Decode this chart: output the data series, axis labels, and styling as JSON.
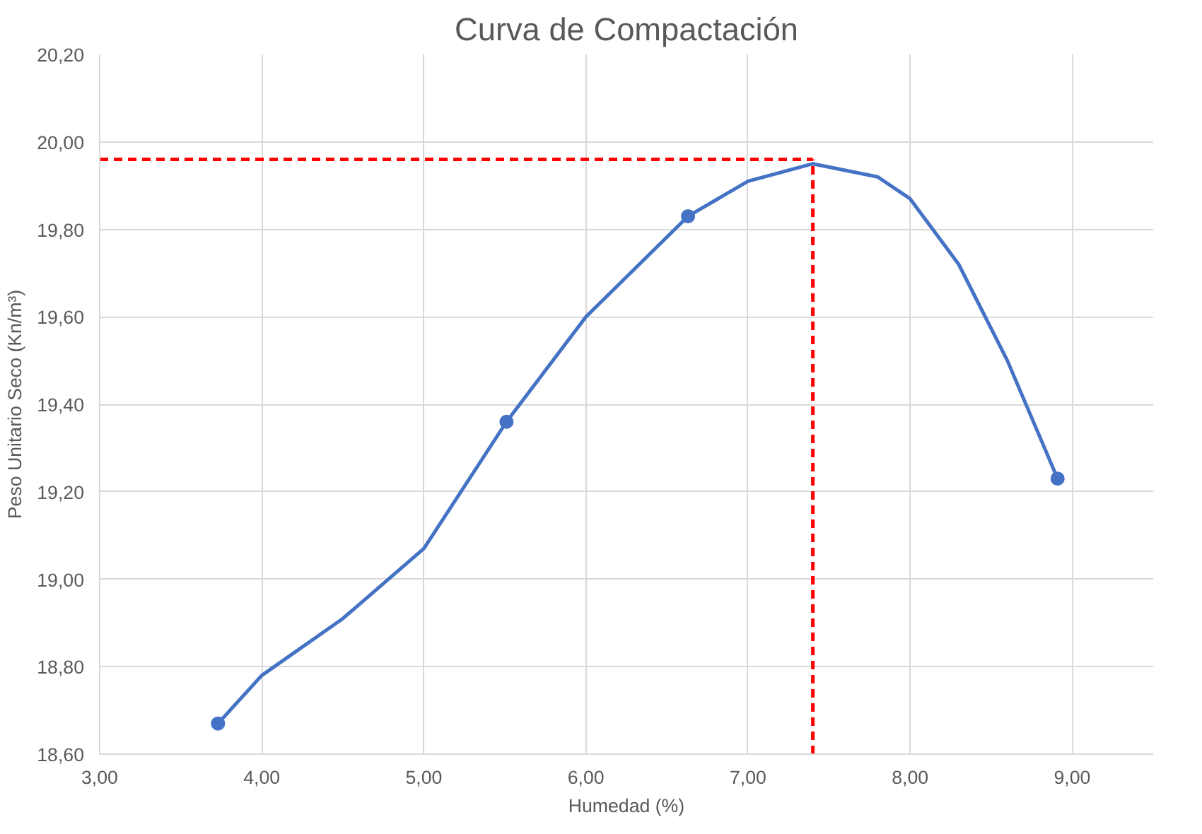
{
  "chart_data": {
    "type": "line",
    "title": "Curva de Compactación",
    "xlabel": "Humedad (%)",
    "ylabel": "Peso Unitario Seco (Kn/m³)",
    "xlim": [
      3,
      9.5
    ],
    "ylim": [
      18.6,
      20.2
    ],
    "xticks": [
      {
        "value": 3,
        "label": "3,00"
      },
      {
        "value": 4,
        "label": "4,00"
      },
      {
        "value": 5,
        "label": "5,00"
      },
      {
        "value": 6,
        "label": "6,00"
      },
      {
        "value": 7,
        "label": "7,00"
      },
      {
        "value": 8,
        "label": "8,00"
      },
      {
        "value": 9,
        "label": "9,00"
      }
    ],
    "yticks": [
      {
        "value": 18.6,
        "label": "18,60"
      },
      {
        "value": 18.8,
        "label": "18,80"
      },
      {
        "value": 19.0,
        "label": "19,00"
      },
      {
        "value": 19.2,
        "label": "19,20"
      },
      {
        "value": 19.4,
        "label": "19,40"
      },
      {
        "value": 19.6,
        "label": "19,60"
      },
      {
        "value": 19.8,
        "label": "19,80"
      },
      {
        "value": 20.0,
        "label": "20,00"
      },
      {
        "value": 20.2,
        "label": "20,20"
      }
    ],
    "grid": true,
    "series": [
      {
        "color": "#4472c4",
        "x": [
          3.73,
          4.0,
          4.5,
          5.0,
          5.51,
          6.0,
          6.63,
          7.0,
          7.4,
          7.8,
          8.0,
          8.3,
          8.6,
          8.91
        ],
        "values": [
          18.67,
          18.78,
          18.91,
          19.07,
          19.36,
          19.6,
          19.83,
          19.91,
          19.95,
          19.92,
          19.87,
          19.72,
          19.5,
          19.23
        ],
        "marker": "none"
      },
      {
        "type": "scatter",
        "color": "#4472c4",
        "x": [
          3.73,
          5.51,
          6.63,
          8.91
        ],
        "values": [
          18.67,
          19.36,
          19.83,
          19.23
        ],
        "marker": "circle"
      }
    ],
    "ref_lines": [
      {
        "axis": "y",
        "value": 19.96,
        "color": "#ff0000",
        "line_style": "dashed"
      },
      {
        "axis": "x",
        "value": 7.4,
        "color": "#ff0000",
        "line_style": "dashed"
      }
    ]
  }
}
